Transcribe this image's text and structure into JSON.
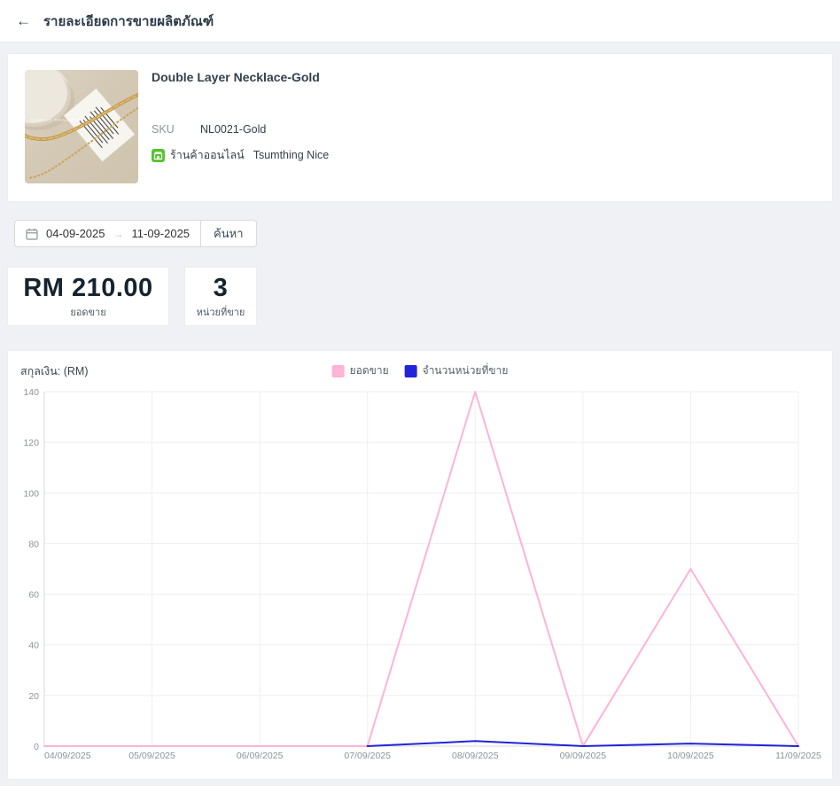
{
  "page": {
    "title": "รายละเอียดการขายผลิตภัณฑ์"
  },
  "icons": {
    "back_arrow": "←",
    "date_range_arrow": "→"
  },
  "product": {
    "name": "Double Layer Necklace-Gold",
    "sku_label": "SKU",
    "sku": "NL0021-Gold",
    "channel_label": "ร้านค้าออนไลน์",
    "store_name": "Tsumthing Nice",
    "image_brand_text": "XIARLIF ORNAMENTS"
  },
  "filters": {
    "date_start": "04-09-2025",
    "date_end": "11-09-2025",
    "search_label": "ค้นหา"
  },
  "stats": {
    "sales": {
      "value": "RM 210.00",
      "label": "ยอดขาย"
    },
    "units": {
      "value": "3",
      "label": "หน่วยที่ขาย"
    }
  },
  "chart": {
    "currency_label": "สกุลเงิน: (RM)"
  },
  "chart_data": {
    "type": "line",
    "x": [
      "04/09/2025",
      "05/09/2025",
      "06/09/2025",
      "07/09/2025",
      "08/09/2025",
      "09/09/2025",
      "10/09/2025",
      "11/09/2025"
    ],
    "series": [
      {
        "name": "ยอดขาย",
        "color": "#ffb3d6",
        "values": [
          0,
          0,
          0,
          0,
          140,
          0,
          70,
          0
        ]
      },
      {
        "name": "จำนวนหน่วยที่ขาย",
        "color": "#2323d9",
        "values": [
          null,
          null,
          null,
          0,
          2,
          0,
          1,
          0
        ]
      }
    ],
    "ylim": [
      0,
      140
    ],
    "yticks": [
      0,
      20,
      40,
      60,
      80,
      100,
      120,
      140
    ],
    "grid": true,
    "legend_position": "top-center",
    "grid_color": "#efefef",
    "axis_color": "#d9d9d9"
  }
}
